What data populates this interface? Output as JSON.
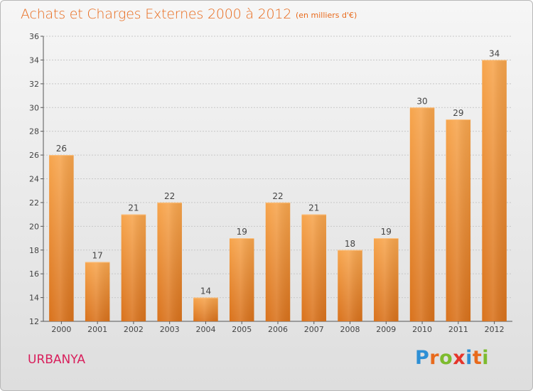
{
  "title": "Achats et Charges Externes 2000 à 2012",
  "subtitle": "(en milliers d'€)",
  "commune": "URBANYA",
  "logo": {
    "letters": [
      "P",
      "r",
      "o",
      "x",
      "i",
      "t",
      "i"
    ],
    "colors": [
      "#2d8fd5",
      "#e86a1c",
      "#7dbb2e",
      "#e5352b",
      "#2d8fd5",
      "#e86a1c",
      "#7dbb2e"
    ]
  },
  "colors": {
    "title": "#e86a1c",
    "commune": "#d81e5b",
    "bar_top": "#f7a54d",
    "bar_bottom": "#d9721c"
  },
  "chart_data": {
    "type": "bar",
    "categories": [
      "2000",
      "2001",
      "2002",
      "2003",
      "2004",
      "2005",
      "2006",
      "2007",
      "2008",
      "2009",
      "2010",
      "2011",
      "2012"
    ],
    "values": [
      26,
      17,
      21,
      22,
      14,
      19,
      22,
      21,
      18,
      19,
      30,
      29,
      34
    ],
    "ylim": [
      12,
      36
    ],
    "yticks": [
      12,
      14,
      16,
      18,
      20,
      22,
      24,
      26,
      28,
      30,
      32,
      34,
      36
    ],
    "grid": true,
    "legend": "none"
  }
}
